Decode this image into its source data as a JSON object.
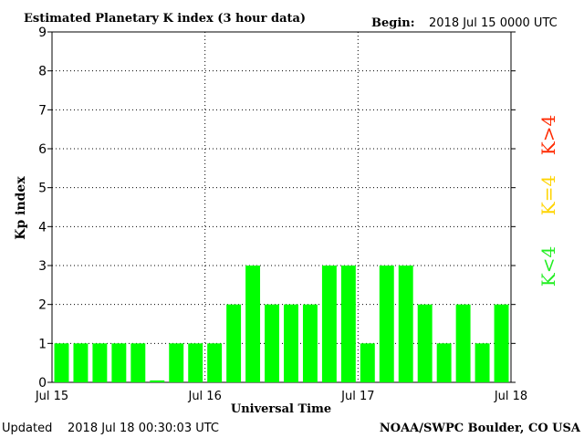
{
  "header": {
    "title": "Estimated Planetary K index (3 hour data)",
    "begin_label": "Begin:",
    "begin_value": "2018 Jul 15 0000 UTC"
  },
  "footer": {
    "updated_label": "Updated",
    "updated_value": "2018 Jul 18 00:30:03 UTC",
    "source": "NOAA/SWPC Boulder, CO USA"
  },
  "legend": {
    "items": [
      {
        "text": "K>4",
        "color": "#ff2a00"
      },
      {
        "text": "K=4",
        "color": "#ffd400"
      },
      {
        "text": "K<4",
        "color": "#22ee22"
      }
    ]
  },
  "colors": {
    "bar": "#00ff00",
    "axis": "#000000",
    "grid": "#000000"
  },
  "chart_data": {
    "type": "bar",
    "title": "Estimated Planetary K index (3 hour data)",
    "xlabel": "Universal Time",
    "ylabel": "Kp index",
    "ylim": [
      0,
      9
    ],
    "yticks": [
      0,
      1,
      2,
      3,
      4,
      5,
      6,
      7,
      8,
      9
    ],
    "xticks": [
      "Jul 15",
      "Jul 16",
      "Jul 17",
      "Jul 18"
    ],
    "grid": true,
    "legend_position": "right",
    "values": [
      1,
      1,
      1,
      1,
      1,
      0.05,
      1,
      1,
      1,
      2,
      3,
      2,
      2,
      2,
      3,
      3,
      1,
      3,
      3,
      2,
      1,
      2,
      1,
      2
    ]
  }
}
